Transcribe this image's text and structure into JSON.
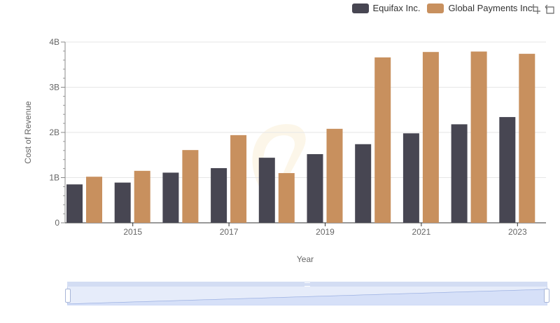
{
  "legend": {
    "items": [
      {
        "label": "Equifax Inc.",
        "color": "#474652"
      },
      {
        "label": "Global Payments Inc.",
        "color": "#c8905e"
      }
    ]
  },
  "toolbox": {
    "icons": [
      "zoom-icon",
      "restore-icon"
    ]
  },
  "chart_data": {
    "type": "bar",
    "xlabel": "Year",
    "ylabel": "Cost of Revenue",
    "categories": [
      "2014",
      "2015",
      "2016",
      "2017",
      "2018",
      "2019",
      "2020",
      "2021",
      "2022",
      "2023"
    ],
    "x_tick_labels": [
      "2015",
      "2017",
      "2019",
      "2021",
      "2023"
    ],
    "y_tick_labels": [
      "0",
      "1B",
      "2B",
      "3B",
      "4B"
    ],
    "ylim": [
      0,
      4000000000
    ],
    "grid": true,
    "legend_position": "top-right",
    "series": [
      {
        "name": "Equifax Inc.",
        "color": "#474652",
        "values": [
          850000000,
          890000000,
          1110000000,
          1210000000,
          1440000000,
          1520000000,
          1740000000,
          1980000000,
          2180000000,
          2340000000
        ]
      },
      {
        "name": "Global Payments Inc.",
        "color": "#c8905e",
        "values": [
          1020000000,
          1150000000,
          1610000000,
          1940000000,
          1100000000,
          2080000000,
          3660000000,
          3780000000,
          3790000000,
          3740000000
        ]
      }
    ]
  }
}
